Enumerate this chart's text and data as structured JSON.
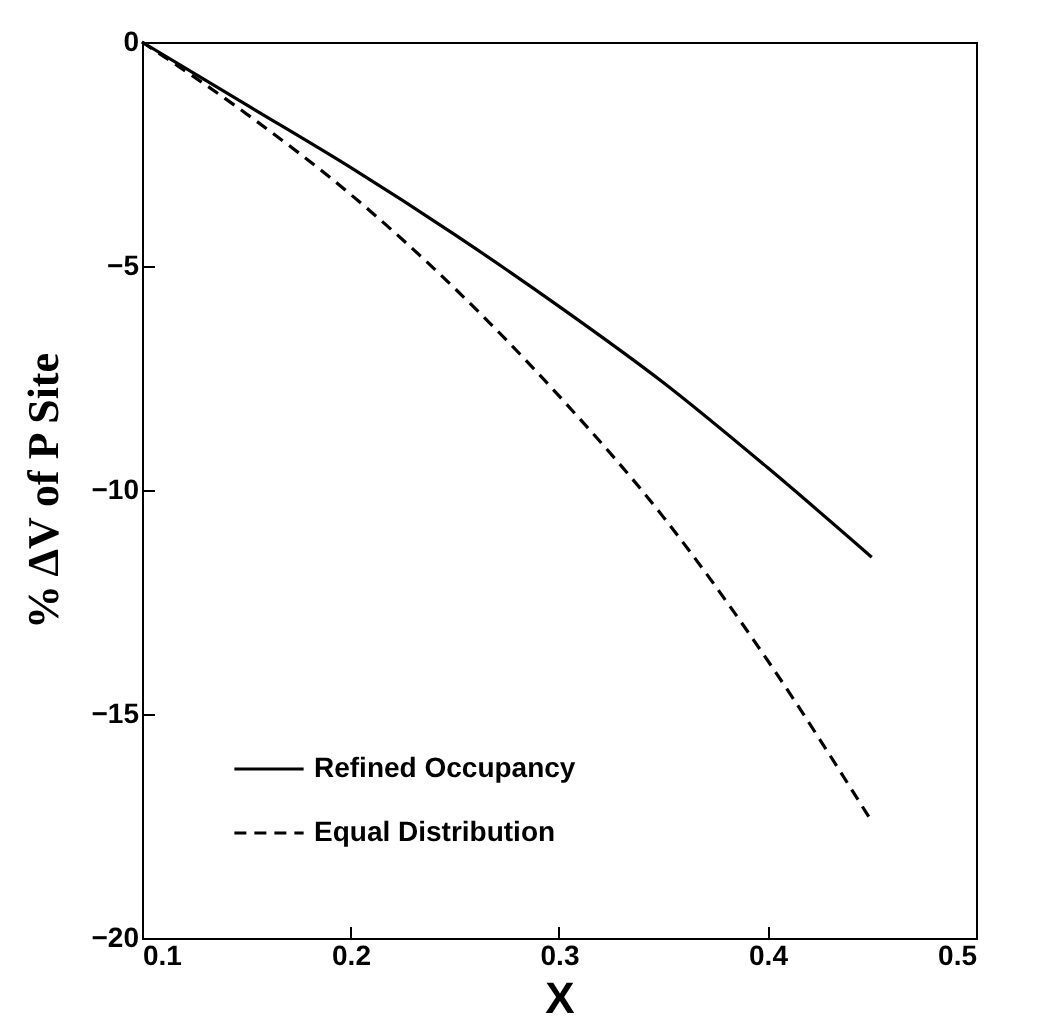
{
  "chart_data": {
    "type": "line",
    "xlabel": "X",
    "ylabel": "% ΔV  of P Site",
    "xlim": [
      0.1,
      0.5
    ],
    "ylim": [
      -20,
      0
    ],
    "xticks": [
      0.1,
      0.2,
      0.3,
      0.4,
      0.5
    ],
    "yticks": [
      -20,
      -15,
      -10,
      -5,
      0
    ],
    "grid": false,
    "legend": "bottom left",
    "marker": "none",
    "x": [
      0.1,
      0.15,
      0.2,
      0.25,
      0.3,
      0.35,
      0.4,
      0.45
    ],
    "series": [
      {
        "name": "Refined Occupancy",
        "color": "#000000",
        "line_style": "solid",
        "values": [
          0,
          -1.4,
          -2.8,
          -4.3,
          -5.9,
          -7.6,
          -9.5,
          -11.5
        ]
      },
      {
        "name": "Equal Distribution",
        "color": "#000000",
        "line_style": "dashed",
        "values": [
          0,
          -1.6,
          -3.4,
          -5.5,
          -7.9,
          -10.6,
          -13.8,
          -17.4
        ]
      }
    ]
  }
}
